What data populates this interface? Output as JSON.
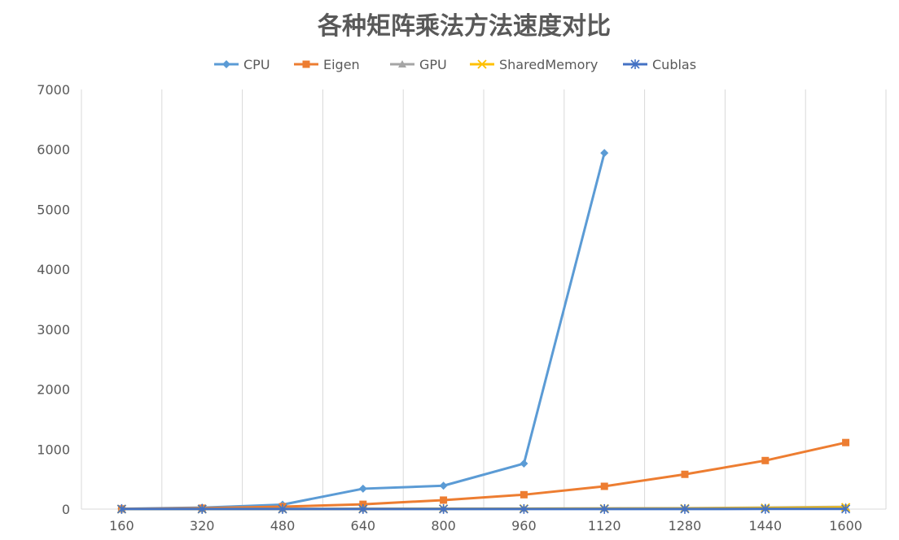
{
  "chart_data": {
    "type": "line",
    "title": "各种矩阵乘法方法速度对比",
    "xlabel": "",
    "ylabel": "",
    "categories": [
      "160",
      "320",
      "480",
      "640",
      "800",
      "960",
      "1120",
      "1280",
      "1440",
      "1600"
    ],
    "ylim": [
      0,
      7000
    ],
    "yticks": [
      0,
      1000,
      2000,
      3000,
      4000,
      5000,
      6000,
      7000
    ],
    "grid": "vertical",
    "legend_position": "top",
    "series": [
      {
        "name": "CPU",
        "color": "#5B9BD5",
        "marker": "diamond",
        "values": [
          5,
          25,
          75,
          340,
          390,
          760,
          5940,
          null,
          null,
          null
        ]
      },
      {
        "name": "Eigen",
        "color": "#ED7D31",
        "marker": "square",
        "values": [
          3,
          15,
          40,
          80,
          150,
          240,
          380,
          580,
          810,
          1110
        ]
      },
      {
        "name": "GPU",
        "color": "#A5A5A5",
        "marker": "triangle",
        "values": [
          1,
          2,
          3,
          5,
          7,
          9,
          12,
          16,
          25,
          38
        ]
      },
      {
        "name": "SharedMemory",
        "color": "#FFC000",
        "marker": "x",
        "values": [
          1,
          1,
          2,
          3,
          5,
          6,
          8,
          10,
          18,
          28
        ]
      },
      {
        "name": "Cublas",
        "color": "#4472C4",
        "marker": "star",
        "values": [
          1,
          1,
          1,
          1,
          1,
          1,
          2,
          2,
          3,
          3
        ]
      }
    ]
  }
}
